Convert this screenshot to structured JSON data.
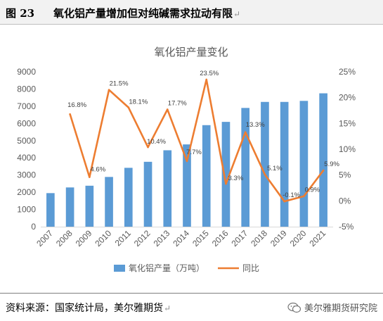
{
  "header": {
    "figure_number": "图 23",
    "figure_title": "氧化铝产量增加但对纯碱需求拉动有限",
    "return_mark": "↵"
  },
  "footer": {
    "source": "资料来源：国家统计局，美尔雅期货",
    "return_mark": "↵",
    "watermark": "美尔雅期货研究院",
    "watermark_icon": "wechat-icon"
  },
  "colors": {
    "bar": "#5b9bd5",
    "line": "#ed7d31",
    "axis_text": "#595959"
  },
  "chart_data": {
    "type": "bar",
    "title": "氧化铝产量变化",
    "categories": [
      "2007",
      "2008",
      "2009",
      "2010",
      "2011",
      "2012",
      "2013",
      "2014",
      "2015",
      "2016",
      "2017",
      "2018",
      "2019",
      "2020",
      "2021"
    ],
    "series": [
      {
        "name": "氧化铝产量（万吨）",
        "type": "bar",
        "axis": "left",
        "values": [
          1950,
          2280,
          2380,
          2890,
          3420,
          3770,
          4440,
          4780,
          5900,
          6090,
          6900,
          7250,
          7250,
          7310,
          7750
        ]
      },
      {
        "name": "同比",
        "type": "line",
        "axis": "right",
        "values": [
          null,
          16.8,
          4.6,
          21.5,
          18.1,
          10.4,
          17.7,
          7.7,
          23.5,
          3.3,
          13.3,
          5.1,
          -0.1,
          0.9,
          5.9
        ],
        "labels": [
          "",
          "16.8%",
          "4.6%",
          "21.5%",
          "18.1%",
          "10.4%",
          "17.7%",
          "7.7%",
          "23.5%",
          "3.3%",
          "13.3%",
          "5.1%",
          "-0.1%",
          "0.9%",
          "5.9%"
        ]
      }
    ],
    "ylim_left": [
      0,
      9000
    ],
    "yticks_left": [
      "0",
      "1000",
      "2000",
      "3000",
      "4000",
      "5000",
      "6000",
      "7000",
      "8000",
      "9000"
    ],
    "ylim_right": [
      -5,
      25
    ],
    "yticks_right": [
      "-5%",
      "0%",
      "5%",
      "10%",
      "15%",
      "20%",
      "25%"
    ],
    "legend_position": "bottom",
    "grid": false
  }
}
